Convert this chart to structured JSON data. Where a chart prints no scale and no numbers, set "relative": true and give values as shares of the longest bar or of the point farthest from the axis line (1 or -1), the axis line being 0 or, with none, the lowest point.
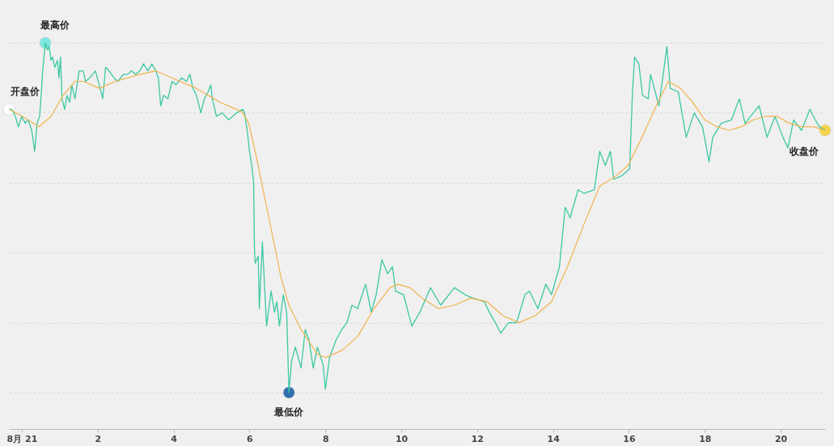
{
  "chart_data": {
    "type": "line",
    "relative": true,
    "grid": "y",
    "xlim": [
      -0.34,
      21.17
    ],
    "xticks": [
      {
        "value": 0,
        "label": "8月 21"
      },
      2,
      4,
      6,
      8,
      10,
      12,
      14,
      16,
      18,
      20
    ],
    "series": [
      {
        "color": "#3cc8a2",
        "x": [
          -0.34,
          -0.26,
          -0.17,
          -0.09,
          0,
          0.09,
          0.17,
          0.26,
          0.34,
          0.4,
          0.47,
          0.51,
          0.55,
          0.62,
          0.68,
          0.72,
          0.77,
          0.81,
          0.87,
          0.94,
          0.98,
          1.02,
          1.06,
          1.13,
          1.19,
          1.26,
          1.32,
          1.4,
          1.51,
          1.62,
          1.68,
          1.79,
          1.94,
          2.04,
          2.13,
          2.21,
          2.3,
          2.43,
          2.53,
          2.68,
          2.79,
          2.89,
          3.0,
          3.11,
          3.21,
          3.32,
          3.43,
          3.53,
          3.6,
          3.66,
          3.74,
          3.85,
          3.96,
          4.06,
          4.21,
          4.34,
          4.43,
          4.51,
          4.6,
          4.72,
          4.81,
          4.91,
          4.98,
          5.02,
          5.13,
          5.28,
          5.45,
          5.66,
          5.83,
          5.87,
          5.94,
          6.0,
          6.06,
          6.11,
          6.13,
          6.15,
          6.23,
          6.26,
          6.34,
          6.45,
          6.57,
          6.66,
          6.72,
          6.79,
          6.89,
          6.98,
          7.04,
          7.11,
          7.21,
          7.36,
          7.47,
          7.57,
          7.68,
          7.79,
          7.94,
          8.0,
          8.11,
          8.28,
          8.43,
          8.57,
          8.7,
          8.85,
          9.06,
          9.21,
          9.34,
          9.49,
          9.64,
          9.77,
          9.85,
          10.06,
          10.28,
          10.49,
          10.77,
          11.04,
          11.4,
          11.68,
          11.89,
          12.19,
          12.32,
          12.53,
          12.62,
          12.83,
          13.04,
          13.26,
          13.38,
          13.6,
          13.81,
          13.96,
          14.17,
          14.32,
          14.45,
          14.66,
          14.81,
          15.09,
          15.23,
          15.38,
          15.51,
          15.6,
          15.81,
          16.02,
          16.09,
          16.15,
          16.26,
          16.36,
          16.51,
          16.57,
          16.79,
          16.94,
          17.0,
          17.09,
          17.3,
          17.51,
          17.72,
          17.94,
          18.11,
          18.21,
          18.43,
          18.7,
          18.91,
          19.06,
          19.28,
          19.43,
          19.64,
          19.85,
          20.06,
          20.19,
          20.34,
          20.55,
          20.77,
          20.91,
          21.02,
          21.17
        ],
        "values": [
          0.81,
          0.81,
          0.79,
          0.76,
          0.79,
          0.77,
          0.78,
          0.75,
          0.69,
          0.77,
          0.79,
          0.85,
          0.92,
          1,
          0.98,
          0.99,
          0.95,
          0.96,
          0.93,
          0.95,
          0.9,
          0.96,
          0.84,
          0.81,
          0.85,
          0.83,
          0.88,
          0.84,
          0.92,
          0.92,
          0.89,
          0.9,
          0.92,
          0.88,
          0.84,
          0.93,
          0.92,
          0.9,
          0.89,
          0.91,
          0.91,
          0.92,
          0.91,
          0.92,
          0.94,
          0.92,
          0.94,
          0.92,
          0.9,
          0.82,
          0.85,
          0.84,
          0.89,
          0.88,
          0.9,
          0.89,
          0.91,
          0.87,
          0.85,
          0.8,
          0.84,
          0.86,
          0.88,
          0.84,
          0.79,
          0.8,
          0.78,
          0.8,
          0.81,
          0.8,
          0.75,
          0.69,
          0.65,
          0.6,
          0.42,
          0.37,
          0.39,
          0.24,
          0.43,
          0.19,
          0.29,
          0.23,
          0.26,
          0.19,
          0.28,
          0.23,
          0,
          0.09,
          0.13,
          0.07,
          0.18,
          0.15,
          0.07,
          0.13,
          0.08,
          0.01,
          0.1,
          0.15,
          0.18,
          0.2,
          0.25,
          0.24,
          0.31,
          0.23,
          0.28,
          0.38,
          0.34,
          0.36,
          0.29,
          0.28,
          0.19,
          0.23,
          0.3,
          0.25,
          0.3,
          0.28,
          0.27,
          0.26,
          0.23,
          0.19,
          0.17,
          0.2,
          0.2,
          0.28,
          0.29,
          0.24,
          0.31,
          0.28,
          0.36,
          0.53,
          0.5,
          0.58,
          0.57,
          0.58,
          0.69,
          0.65,
          0.69,
          0.61,
          0.62,
          0.64,
          0.85,
          0.96,
          0.94,
          0.85,
          0.84,
          0.91,
          0.82,
          0.94,
          0.99,
          0.87,
          0.86,
          0.73,
          0.8,
          0.76,
          0.66,
          0.73,
          0.77,
          0.78,
          0.84,
          0.77,
          0.8,
          0.82,
          0.73,
          0.79,
          0.73,
          0.7,
          0.78,
          0.75,
          0.81,
          0.78,
          0.76,
          0.75
        ]
      },
      {
        "color": "#f2b24c",
        "x": [
          -0.34,
          0.02,
          0.45,
          0.77,
          1.09,
          1.4,
          1.62,
          2.04,
          2.47,
          3.11,
          3.53,
          3.96,
          4.6,
          5.23,
          5.66,
          5.83,
          5.98,
          6.19,
          6.51,
          6.83,
          7.04,
          7.36,
          7.79,
          8.0,
          8.43,
          8.85,
          9.28,
          9.7,
          9.91,
          10.23,
          10.55,
          10.98,
          11.4,
          11.83,
          12.26,
          12.68,
          13.11,
          13.53,
          13.96,
          14.38,
          14.81,
          15.23,
          15.66,
          15.98,
          16.3,
          16.72,
          17.04,
          17.36,
          17.68,
          18.0,
          18.32,
          18.64,
          18.96,
          19.28,
          19.6,
          19.91,
          20.23,
          20.55,
          20.87,
          21.17
        ],
        "values": [
          0.81,
          0.79,
          0.76,
          0.79,
          0.85,
          0.89,
          0.89,
          0.87,
          0.89,
          0.91,
          0.92,
          0.9,
          0.87,
          0.83,
          0.81,
          0.8,
          0.77,
          0.67,
          0.5,
          0.33,
          0.25,
          0.18,
          0.11,
          0.1,
          0.12,
          0.16,
          0.24,
          0.3,
          0.31,
          0.3,
          0.27,
          0.24,
          0.25,
          0.27,
          0.26,
          0.22,
          0.2,
          0.22,
          0.26,
          0.36,
          0.48,
          0.59,
          0.62,
          0.65,
          0.72,
          0.82,
          0.89,
          0.87,
          0.83,
          0.78,
          0.76,
          0.75,
          0.76,
          0.78,
          0.79,
          0.79,
          0.77,
          0.76,
          0.76,
          0.75
        ]
      },
      {
        "type": "scatter",
        "x": [
          -0.34,
          0.62,
          7.04,
          21.17
        ],
        "values": [
          0.81,
          1,
          0,
          0.75
        ],
        "colors": [
          "#ffffff",
          "#7fe6e2",
          "#2f6fae",
          "#f4d64a"
        ]
      }
    ],
    "annotations": [
      {
        "text": "开盘价",
        "x": -0.34,
        "y": 0.81
      },
      {
        "text": "最高价",
        "x": 0.62,
        "y": 1
      },
      {
        "text": "最低价",
        "x": 7.04,
        "y": 0
      },
      {
        "text": "收盘价",
        "x": 21.17,
        "y": 0.75
      }
    ]
  }
}
